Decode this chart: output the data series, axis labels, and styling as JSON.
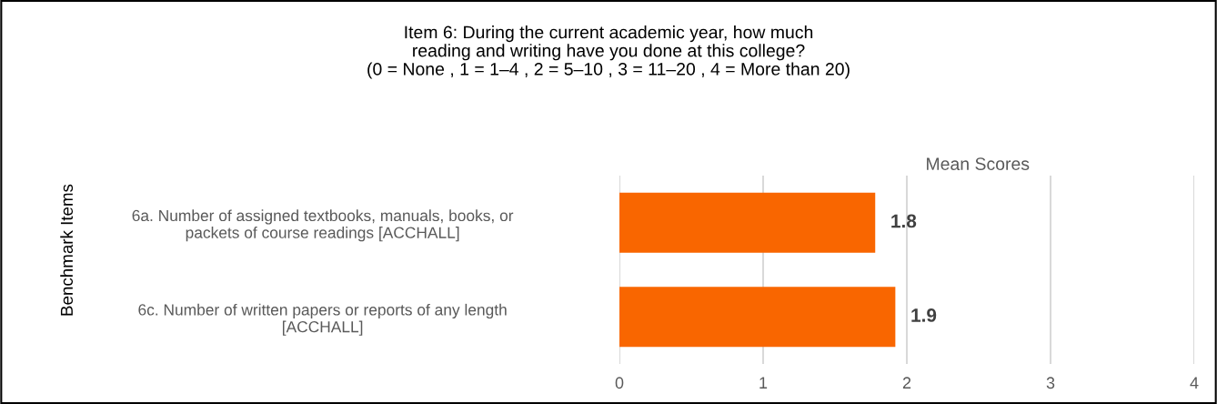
{
  "chart_data": {
    "type": "bar",
    "orientation": "horizontal",
    "title": "Item 6: During the current academic year, how much\nreading and writing have you done at this college?\n(0 = None , 1 = 1–4 , 2 = 5–10 , 3 = 11–20 , 4 = More than 20)",
    "xlabel": "Mean Scores",
    "ylabel": "Benchmark Items",
    "categories": [
      "6a. Number of assigned textbooks, manuals, books, or\npackets of course readings [ACCHALL]",
      "6c. Number of written papers or reports of any length\n[ACCHALL]"
    ],
    "values": [
      1.78,
      1.92
    ],
    "value_labels": [
      "1.8",
      "1.9"
    ],
    "color": "#f96600",
    "xlim": [
      0,
      4
    ],
    "xticks": [
      0,
      1,
      2,
      3,
      4
    ],
    "grid": "x",
    "legend": false
  }
}
